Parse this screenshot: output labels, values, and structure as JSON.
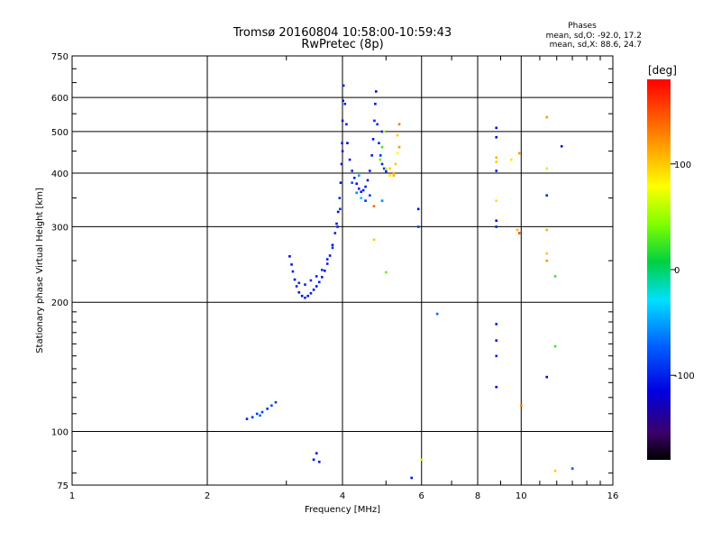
{
  "chart_data": {
    "type": "scatter",
    "title": "Tromsø 20160804 10:58:00-10:59:43",
    "subtitle": "RwPretec (8p)",
    "xlabel": "Frequency [MHz]",
    "ylabel": "Stationary phase Virtual Height [km]",
    "x_scale": "log2",
    "y_scale": "log",
    "xlim": [
      1,
      16
    ],
    "ylim": [
      75,
      750
    ],
    "x_ticks": [
      1,
      2,
      4,
      6,
      8,
      10,
      16
    ],
    "x_tick_labels": [
      "1",
      "2",
      "4",
      "6",
      "8",
      "10",
      "16"
    ],
    "y_ticks": [
      75,
      100,
      200,
      300,
      400,
      500,
      600,
      750
    ],
    "y_tick_labels": [
      "75",
      "100",
      "200",
      "300",
      "400",
      "500",
      "600",
      "750"
    ],
    "grid": true,
    "stats": {
      "title": "Phases",
      "line1": "mean, sd,O: -92.0, 17.2",
      "line2": "mean, sd,X:  88.6, 24.7"
    },
    "colorbar": {
      "label": "[deg]",
      "range": [
        -180,
        180
      ],
      "ticks": [
        100,
        0,
        -100
      ],
      "tick_labels": [
        "100",
        "0",
        "-100"
      ]
    },
    "series": [
      {
        "points": [
          [
            2.45,
            107,
            -100
          ],
          [
            2.52,
            108,
            -95
          ],
          [
            2.58,
            110,
            -90
          ],
          [
            2.65,
            111,
            -85
          ],
          [
            2.72,
            113,
            -95
          ],
          [
            2.78,
            115,
            -80
          ],
          [
            2.84,
            117,
            -90
          ],
          [
            2.62,
            109,
            -70
          ],
          [
            3.45,
            86,
            -110
          ],
          [
            3.5,
            89,
            -120
          ],
          [
            3.55,
            85,
            -105
          ],
          [
            3.05,
            256,
            -110
          ],
          [
            3.08,
            245,
            -105
          ],
          [
            3.1,
            236,
            -100
          ],
          [
            3.13,
            226,
            -110
          ],
          [
            3.16,
            218,
            -100
          ],
          [
            3.2,
            211,
            -105
          ],
          [
            3.25,
            207,
            -110
          ],
          [
            3.3,
            205,
            -100
          ],
          [
            3.35,
            207,
            -105
          ],
          [
            3.4,
            210,
            -100
          ],
          [
            3.45,
            214,
            -105
          ],
          [
            3.5,
            218,
            -110
          ],
          [
            3.55,
            223,
            -100
          ],
          [
            3.6,
            229,
            -105
          ],
          [
            3.65,
            237,
            -110
          ],
          [
            3.7,
            246,
            -100
          ],
          [
            3.75,
            257,
            -105
          ],
          [
            3.8,
            272,
            -110
          ],
          [
            3.85,
            290,
            -100
          ],
          [
            3.88,
            305,
            -105
          ],
          [
            3.91,
            325,
            -110
          ],
          [
            3.94,
            350,
            -100
          ],
          [
            3.96,
            380,
            -105
          ],
          [
            3.98,
            420,
            -110
          ],
          [
            3.99,
            470,
            -100
          ],
          [
            4.0,
            530,
            -105
          ],
          [
            4.01,
            590,
            -110
          ],
          [
            4.02,
            640,
            -100
          ],
          [
            3.2,
            222,
            -95
          ],
          [
            3.3,
            220,
            -100
          ],
          [
            3.4,
            225,
            -95
          ],
          [
            3.5,
            230,
            -100
          ],
          [
            3.6,
            238,
            -95
          ],
          [
            3.7,
            252,
            -100
          ],
          [
            3.8,
            268,
            -95
          ],
          [
            3.9,
            300,
            -100
          ],
          [
            3.95,
            330,
            -95
          ],
          [
            4.0,
            450,
            -100
          ],
          [
            4.05,
            580,
            -105
          ],
          [
            4.08,
            520,
            -100
          ],
          [
            4.1,
            470,
            -110
          ],
          [
            4.15,
            430,
            -105
          ],
          [
            4.2,
            405,
            -100
          ],
          [
            4.25,
            390,
            -105
          ],
          [
            4.3,
            378,
            -110
          ],
          [
            4.35,
            368,
            -100
          ],
          [
            4.4,
            362,
            -105
          ],
          [
            4.45,
            365,
            -100
          ],
          [
            4.5,
            372,
            -105
          ],
          [
            4.55,
            385,
            -110
          ],
          [
            4.6,
            405,
            -100
          ],
          [
            4.65,
            440,
            -105
          ],
          [
            4.68,
            480,
            -110
          ],
          [
            4.71,
            530,
            -100
          ],
          [
            4.73,
            580,
            -105
          ],
          [
            4.75,
            620,
            -110
          ],
          [
            4.3,
            360,
            -60
          ],
          [
            4.4,
            350,
            -40
          ],
          [
            4.2,
            380,
            -80
          ],
          [
            4.35,
            395,
            -50
          ],
          [
            4.78,
            520,
            -95
          ],
          [
            4.82,
            470,
            -100
          ],
          [
            4.86,
            440,
            -95
          ],
          [
            4.9,
            420,
            -100
          ],
          [
            4.95,
            410,
            -95
          ],
          [
            5.0,
            404,
            -100
          ],
          [
            4.6,
            355,
            -90
          ],
          [
            4.5,
            345,
            -95
          ],
          [
            4.9,
            345,
            -60
          ],
          [
            4.9,
            500,
            -100
          ],
          [
            5.9,
            330,
            -110
          ],
          [
            5.9,
            300,
            -90
          ],
          [
            6.5,
            188,
            -70
          ]
        ]
      },
      {
        "points": [
          [
            4.85,
            430,
            30
          ],
          [
            4.9,
            460,
            20
          ],
          [
            5.0,
            410,
            60
          ],
          [
            5.1,
            395,
            90
          ],
          [
            5.2,
            400,
            110
          ],
          [
            5.25,
            420,
            100
          ],
          [
            5.3,
            445,
            80
          ],
          [
            5.35,
            460,
            120
          ],
          [
            5.35,
            520,
            130
          ],
          [
            5.3,
            490,
            100
          ],
          [
            5.2,
            395,
            110
          ],
          [
            5.1,
            410,
            100
          ],
          [
            4.95,
            500,
            50
          ],
          [
            4.7,
            335,
            140
          ],
          [
            4.7,
            280,
            100
          ],
          [
            5.0,
            235,
            30
          ],
          [
            6.0,
            86,
            60
          ],
          [
            5.7,
            78,
            -110
          ],
          [
            8.8,
            510,
            -110
          ],
          [
            8.8,
            485,
            -120
          ],
          [
            8.8,
            435,
            110
          ],
          [
            8.8,
            425,
            100
          ],
          [
            8.8,
            405,
            -105
          ],
          [
            8.8,
            345,
            90
          ],
          [
            8.8,
            310,
            -110
          ],
          [
            8.8,
            300,
            -100
          ],
          [
            8.8,
            178,
            -105
          ],
          [
            8.8,
            163,
            -110
          ],
          [
            8.8,
            150,
            -100
          ],
          [
            8.8,
            127,
            -115
          ],
          [
            9.5,
            430,
            90
          ],
          [
            9.9,
            445,
            120
          ],
          [
            9.8,
            295,
            110
          ],
          [
            9.9,
            290,
            150
          ],
          [
            10.0,
            115,
            130
          ],
          [
            11.4,
            540,
            120
          ],
          [
            11.4,
            410,
            60
          ],
          [
            11.4,
            355,
            -100
          ],
          [
            11.4,
            295,
            110
          ],
          [
            11.4,
            260,
            100
          ],
          [
            11.4,
            250,
            120
          ],
          [
            11.4,
            134,
            -120
          ],
          [
            11.9,
            230,
            20
          ],
          [
            11.9,
            158,
            20
          ],
          [
            11.9,
            81,
            100
          ],
          [
            12.3,
            462,
            -110
          ],
          [
            13.0,
            82,
            -80
          ]
        ]
      }
    ]
  }
}
